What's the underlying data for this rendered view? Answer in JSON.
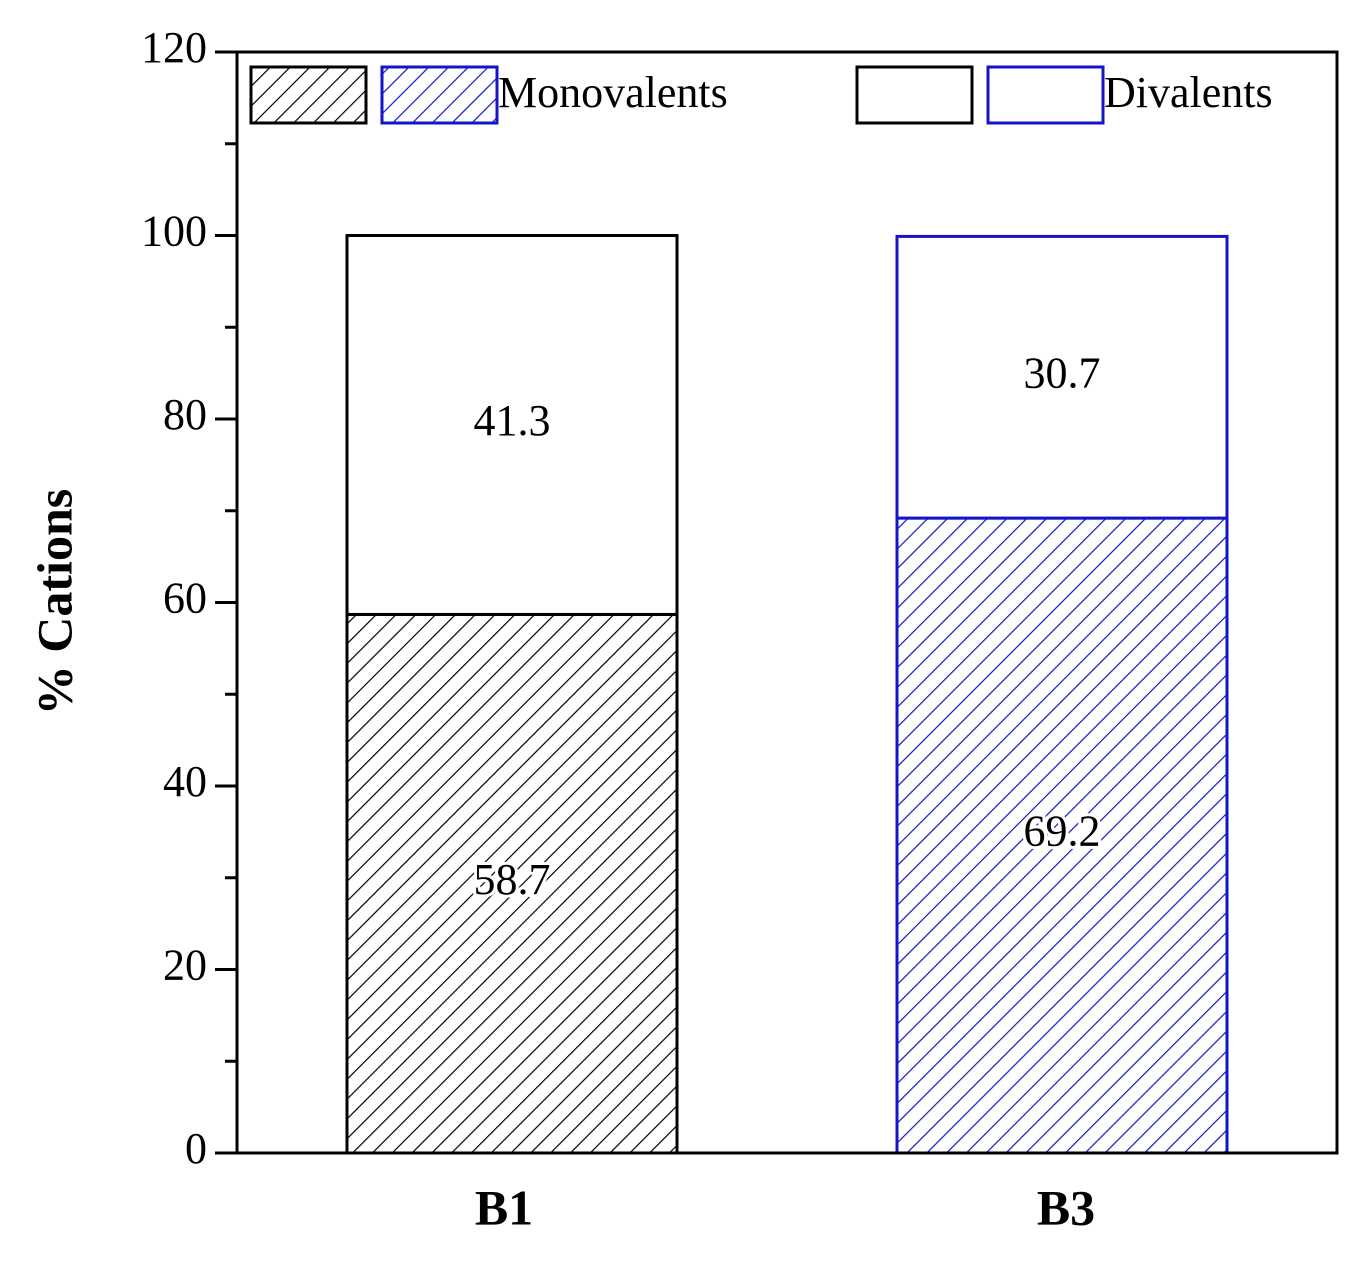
{
  "chart_data": {
    "type": "stacked_bar",
    "y_label": "% Cations",
    "categories": [
      "B1",
      "B3"
    ],
    "category_colors": [
      "#000000",
      "#1414c8"
    ],
    "series": [
      {
        "name": "Monovalents",
        "pattern": "hatch",
        "values": [
          58.7,
          69.2
        ]
      },
      {
        "name": "Divalents",
        "pattern": "none",
        "values": [
          41.3,
          30.7
        ]
      }
    ],
    "ylim": [
      0,
      120
    ],
    "yticks": [
      0,
      20,
      40,
      60,
      80,
      100,
      120
    ],
    "legend": "top",
    "grid": false
  }
}
